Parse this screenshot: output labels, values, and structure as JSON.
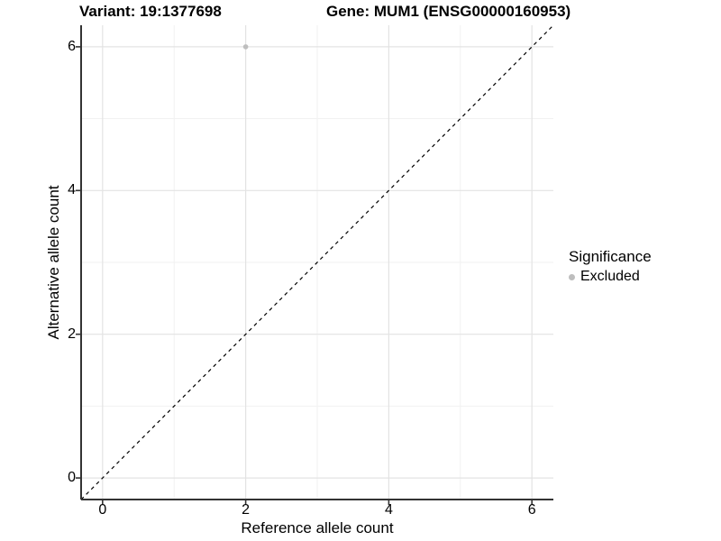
{
  "figure": {
    "title_variant": "Variant: 19:1377698",
    "title_gene": "Gene: MUM1 (ENSG00000160953)"
  },
  "colors": {
    "major_grid": "#e3e3e3",
    "minor_grid": "#f1f1f1",
    "axis_line": "#333333",
    "reference_line": "#000000",
    "point": "#bebebe",
    "background": "#ffffff"
  },
  "chart_data": {
    "type": "scatter",
    "title_left": "Variant: 19:1377698",
    "title_right": "Gene: MUM1 (ENSG00000160953)",
    "xlabel": "Reference allele count",
    "ylabel": "Alternative allele count",
    "xlim": [
      -0.3,
      6.3
    ],
    "ylim": [
      -0.3,
      6.3
    ],
    "x_ticks": [
      0,
      2,
      4,
      6
    ],
    "y_ticks": [
      0,
      2,
      4,
      6
    ],
    "x_minor_gridlines": [
      1,
      3,
      5
    ],
    "y_minor_gridlines": [
      1,
      3,
      5
    ],
    "grid": true,
    "series": [
      {
        "name": "Excluded",
        "color": "#bebebe",
        "points": [
          {
            "x": 2,
            "y": 6
          }
        ],
        "point_radius": 2.8
      }
    ],
    "reference_line": {
      "type": "identity",
      "slope": 1,
      "intercept": 0,
      "style": "dashed",
      "color": "#000000"
    },
    "legend": {
      "title": "Significance",
      "position": "right",
      "entries": [
        {
          "label": "Excluded",
          "color": "#bebebe"
        }
      ]
    }
  }
}
